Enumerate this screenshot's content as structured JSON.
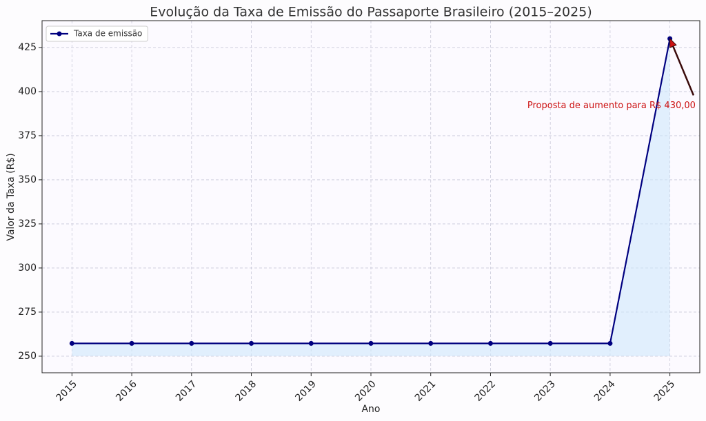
{
  "chart_data": {
    "type": "line",
    "title": "Evolução da Taxa de Emissão do Passaporte Brasileiro (2015–2025)",
    "xlabel": "Ano",
    "ylabel": "Valor da Taxa (R$)",
    "x": [
      2015,
      2016,
      2017,
      2018,
      2019,
      2020,
      2021,
      2022,
      2023,
      2024,
      2025
    ],
    "series": [
      {
        "name": "Taxa de emissão",
        "color": "#000080",
        "values": [
          257.25,
          257.25,
          257.25,
          257.25,
          257.25,
          257.25,
          257.25,
          257.25,
          257.25,
          257.25,
          430
        ]
      }
    ],
    "fill_color": "#cfe8fb",
    "fill_baseline": 250,
    "xlim": [
      2014.5,
      2025.5
    ],
    "xticks": [
      2015,
      2016,
      2017,
      2018,
      2019,
      2020,
      2021,
      2022,
      2023,
      2024,
      2025
    ],
    "ylim": [
      240.6,
      440.2
    ],
    "yticks": [
      250,
      275,
      300,
      325,
      350,
      375,
      400,
      425
    ],
    "grid": true,
    "legend": "upper left",
    "annotation": {
      "text": "Proposta de aumento para R$ 430,00",
      "xy": [
        2025,
        430
      ],
      "xytext": [
        2025.43,
        392
      ],
      "color": "#cc1111"
    }
  }
}
